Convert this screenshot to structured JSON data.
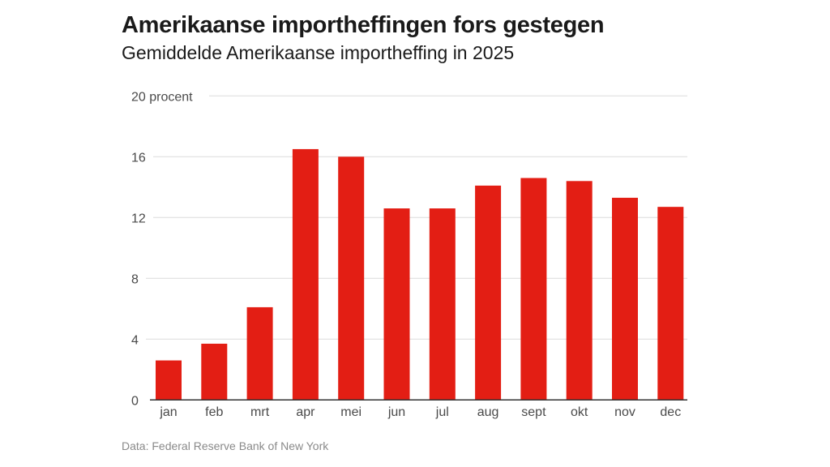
{
  "header": {
    "title": "Amerikaanse importheffingen fors gestegen",
    "subtitle": "Gemiddelde Amerikaanse importheffing in 2025"
  },
  "footer": {
    "source": "Data: Federal Reserve Bank of New York"
  },
  "colors": {
    "bar": "#e31e14",
    "grid": "#dcdcdc",
    "axis": "#333333"
  },
  "chart_data": {
    "type": "bar",
    "title": "Amerikaanse importheffingen fors gestegen",
    "subtitle": "Gemiddelde Amerikaanse importheffing in 2025",
    "xlabel": "",
    "ylabel": "procent",
    "ylim": [
      0,
      20
    ],
    "yticks": [
      0,
      4,
      8,
      12,
      16,
      20
    ],
    "ytick_labels": [
      "0",
      "4",
      "8",
      "12",
      "16",
      "20 procent"
    ],
    "grid": true,
    "categories": [
      "jan",
      "feb",
      "mrt",
      "apr",
      "mei",
      "jun",
      "jul",
      "aug",
      "sept",
      "okt",
      "nov",
      "dec"
    ],
    "values": [
      2.6,
      3.7,
      6.1,
      16.5,
      16.0,
      12.6,
      12.6,
      14.1,
      14.6,
      14.4,
      13.3,
      12.7
    ]
  }
}
